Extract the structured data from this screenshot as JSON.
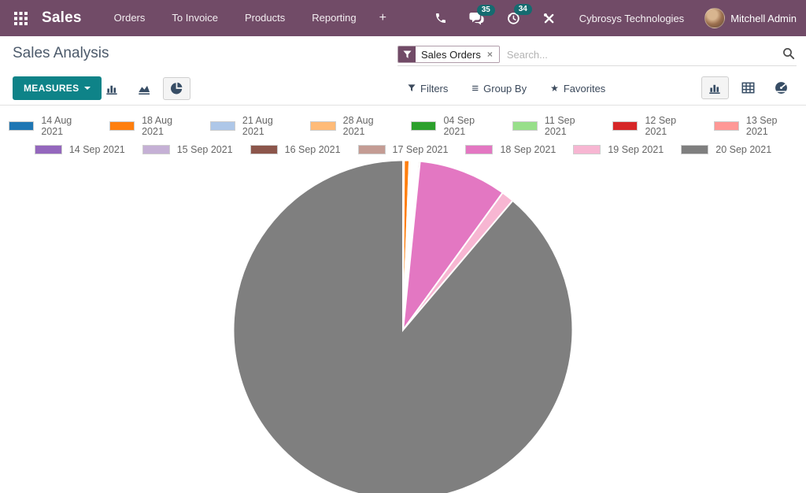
{
  "navbar": {
    "app_name": "Sales",
    "menu_items": [
      "Orders",
      "To Invoice",
      "Products",
      "Reporting"
    ],
    "plus_label": "+",
    "messages_badge": "35",
    "activities_badge": "34",
    "company_name": "Cybrosys Technologies",
    "user_name": "Mitchell Admin"
  },
  "page": {
    "title": "Sales Analysis"
  },
  "search": {
    "facet_label": "Sales Orders",
    "remove_label": "×",
    "placeholder": "Search..."
  },
  "toolbar": {
    "measures_label": "MEASURES",
    "filters_label": "Filters",
    "group_by_label": "Group By",
    "favorites_label": "Favorites",
    "group_by_glyph": "≡",
    "favorites_glyph": "★"
  },
  "icons": {
    "apps-grid-icon": "3x3-grid",
    "phone-icon": "phone-receiver",
    "messages-icon": "chat-bubbles",
    "activities-icon": "clock-arrow",
    "tools-icon": "crossed-tools",
    "search-icon": "magnifier",
    "filter-funnel-icon": "funnel",
    "group-by-icon": "≡",
    "favorites-icon": "★",
    "caret-down-icon": "▼",
    "bar-chart-icon": "bars",
    "area-chart-icon": "area",
    "pie-chart-icon": "pie",
    "pivot-view-icon": "table-grid",
    "dashboard-view-icon": "gauge",
    "close-icon": "×"
  },
  "colors": {
    "navbar_bg": "#714B67",
    "badge_bg": "#156B70",
    "accent_teal": "#0E8388",
    "icon_slate": "#374D65"
  },
  "chart_data": {
    "type": "pie",
    "title": "Sales Analysis",
    "legend_position": "top",
    "legend_rows": [
      8,
      7
    ],
    "categories": [
      "14 Aug 2021",
      "18 Aug 2021",
      "21 Aug 2021",
      "28 Aug 2021",
      "04 Sep 2021",
      "11 Sep 2021",
      "12 Sep 2021",
      "13 Sep 2021",
      "14 Sep 2021",
      "15 Sep 2021",
      "16 Sep 2021",
      "17 Sep 2021",
      "18 Sep 2021",
      "19 Sep 2021",
      "20 Sep 2021"
    ],
    "values": [
      0.1,
      0.5,
      0.08,
      0.12,
      0.08,
      0.12,
      0.08,
      0.08,
      0.08,
      0.12,
      0.08,
      0.16,
      8.4,
      1.2,
      88.8
    ],
    "value_unit": "percent-of-total (estimated from slice angles)",
    "colors": [
      "#1f77b4",
      "#ff7f0e",
      "#aec7e8",
      "#ffbb78",
      "#2ca02c",
      "#98df8a",
      "#d62728",
      "#ff9896",
      "#9467bd",
      "#c5b0d5",
      "#8c564b",
      "#c49c94",
      "#e377c2",
      "#f7b6d2",
      "#7f7f7f"
    ]
  }
}
